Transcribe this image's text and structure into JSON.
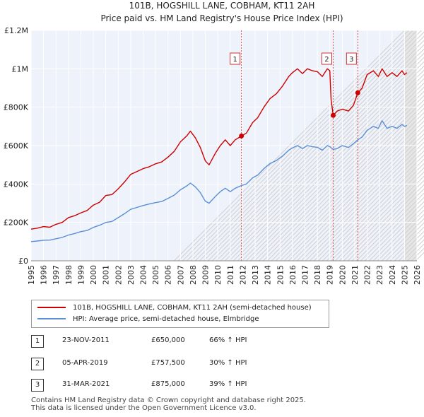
{
  "chart_data": {
    "type": "line",
    "title": "101B, HOGSHILL LANE, COBHAM, KT11 2AH",
    "subtitle": "Price paid vs. HM Land Registry's House Price Index (HPI)",
    "xlim": [
      1995,
      2026
    ],
    "ylim": [
      0,
      1200000
    ],
    "x_ticks": [
      "1995",
      "1996",
      "1997",
      "1998",
      "1999",
      "2000",
      "2001",
      "2002",
      "2003",
      "2004",
      "2005",
      "2006",
      "2007",
      "2008",
      "2009",
      "2010",
      "2011",
      "2012",
      "2013",
      "2014",
      "2015",
      "2016",
      "2017",
      "2018",
      "2019",
      "2020",
      "2021",
      "2022",
      "2023",
      "2024",
      "2025",
      "2026"
    ],
    "y_ticks": [
      {
        "value": 0,
        "label": "£0"
      },
      {
        "value": 200000,
        "label": "£200K"
      },
      {
        "value": 400000,
        "label": "£400K"
      },
      {
        "value": 600000,
        "label": "£600K"
      },
      {
        "value": 800000,
        "label": "£800K"
      },
      {
        "value": 1000000,
        "label": "£1M"
      },
      {
        "value": 1200000,
        "label": "£1.2M"
      }
    ],
    "projection_start": 2025.0,
    "series": [
      {
        "name": "101B, HOGSHILL LANE, COBHAM, KT11 2AH (semi-detached house)",
        "color": "#cc0000",
        "x": [
          1995.0,
          1995.5,
          1996.0,
          1996.5,
          1997.0,
          1997.5,
          1998.0,
          1998.5,
          1999.0,
          1999.5,
          2000.0,
          2000.5,
          2001.0,
          2001.5,
          2002.0,
          2002.5,
          2003.0,
          2003.5,
          2004.0,
          2004.5,
          2005.0,
          2005.5,
          2006.0,
          2006.5,
          2007.0,
          2007.5,
          2007.8,
          2008.2,
          2008.6,
          2009.0,
          2009.3,
          2009.8,
          2010.2,
          2010.6,
          2011.0,
          2011.4,
          2011.9,
          2012.3,
          2012.8,
          2013.2,
          2013.7,
          2014.2,
          2014.7,
          2015.2,
          2015.7,
          2016.0,
          2016.4,
          2016.8,
          2017.2,
          2017.6,
          2018.0,
          2018.4,
          2018.8,
          2019.0,
          2019.1,
          2019.27,
          2019.6,
          2020.0,
          2020.5,
          2020.9,
          2021.25,
          2021.6,
          2022.0,
          2022.5,
          2022.9,
          2023.2,
          2023.6,
          2024.0,
          2024.4,
          2024.8,
          2025.0,
          2025.2
        ],
        "values": [
          165000,
          170000,
          178000,
          175000,
          190000,
          200000,
          225000,
          235000,
          250000,
          262000,
          290000,
          305000,
          340000,
          345000,
          375000,
          410000,
          450000,
          465000,
          480000,
          490000,
          505000,
          515000,
          540000,
          570000,
          620000,
          650000,
          675000,
          640000,
          590000,
          520000,
          500000,
          560000,
          600000,
          630000,
          600000,
          630000,
          650000,
          665000,
          720000,
          745000,
          800000,
          845000,
          870000,
          910000,
          960000,
          980000,
          1000000,
          975000,
          1000000,
          990000,
          985000,
          960000,
          1000000,
          990000,
          840000,
          757500,
          780000,
          790000,
          780000,
          810000,
          875000,
          900000,
          970000,
          990000,
          960000,
          1000000,
          960000,
          980000,
          960000,
          990000,
          970000,
          980000
        ]
      },
      {
        "name": "HPI: Average price, semi-detached house, Elmbridge",
        "color": "#5b8fd6",
        "x": [
          1995.0,
          1995.5,
          1996.0,
          1996.5,
          1997.0,
          1997.5,
          1998.0,
          1998.5,
          1999.0,
          1999.5,
          2000.0,
          2000.5,
          2001.0,
          2001.5,
          2002.0,
          2002.5,
          2003.0,
          2003.5,
          2004.0,
          2004.5,
          2005.0,
          2005.5,
          2006.0,
          2006.5,
          2007.0,
          2007.5,
          2007.8,
          2008.2,
          2008.6,
          2009.0,
          2009.3,
          2009.8,
          2010.2,
          2010.6,
          2011.0,
          2011.4,
          2011.9,
          2012.3,
          2012.8,
          2013.2,
          2013.7,
          2014.2,
          2014.7,
          2015.2,
          2015.7,
          2016.0,
          2016.4,
          2016.8,
          2017.2,
          2017.6,
          2018.0,
          2018.4,
          2018.8,
          2019.0,
          2019.27,
          2019.6,
          2020.0,
          2020.5,
          2020.9,
          2021.25,
          2021.6,
          2022.0,
          2022.5,
          2022.9,
          2023.2,
          2023.6,
          2024.0,
          2024.4,
          2024.8,
          2025.0,
          2025.2
        ],
        "values": [
          100000,
          103000,
          107000,
          108000,
          115000,
          122000,
          134000,
          142000,
          152000,
          158000,
          174000,
          185000,
          200000,
          205000,
          225000,
          245000,
          268000,
          278000,
          288000,
          296000,
          303000,
          309000,
          325000,
          342000,
          370000,
          390000,
          405000,
          385000,
          355000,
          310000,
          300000,
          335000,
          360000,
          378000,
          360000,
          378000,
          392000,
          400000,
          432000,
          446000,
          480000,
          507000,
          522000,
          546000,
          576000,
          588000,
          600000,
          585000,
          600000,
          594000,
          591000,
          576000,
          600000,
          594000,
          580000,
          585000,
          600000,
          590000,
          610000,
          630000,
          645000,
          680000,
          700000,
          690000,
          730000,
          690000,
          700000,
          690000,
          710000,
          700000,
          705000
        ]
      }
    ],
    "sales": [
      {
        "id": "1",
        "x": 2011.9,
        "value": 650000
      },
      {
        "id": "2",
        "x": 2019.27,
        "value": 757500
      },
      {
        "id": "3",
        "x": 2021.25,
        "value": 875000
      }
    ]
  },
  "legend": {
    "items": [
      {
        "label": "101B, HOGSHILL LANE, COBHAM, KT11 2AH (semi-detached house)",
        "color": "#cc0000"
      },
      {
        "label": "HPI: Average price, semi-detached house, Elmbridge",
        "color": "#5b8fd6"
      }
    ]
  },
  "transactions": [
    {
      "id": "1",
      "date": "23-NOV-2011",
      "price": "£650,000",
      "delta": "66% ↑ HPI"
    },
    {
      "id": "2",
      "date": "05-APR-2019",
      "price": "£757,500",
      "delta": "30% ↑ HPI"
    },
    {
      "id": "3",
      "date": "31-MAR-2021",
      "price": "£875,000",
      "delta": "39% ↑ HPI"
    }
  ],
  "footer": {
    "line1": "Contains HM Land Registry data © Crown copyright and database right 2025.",
    "line2": "This data is licensed under the Open Government Licence v3.0."
  }
}
